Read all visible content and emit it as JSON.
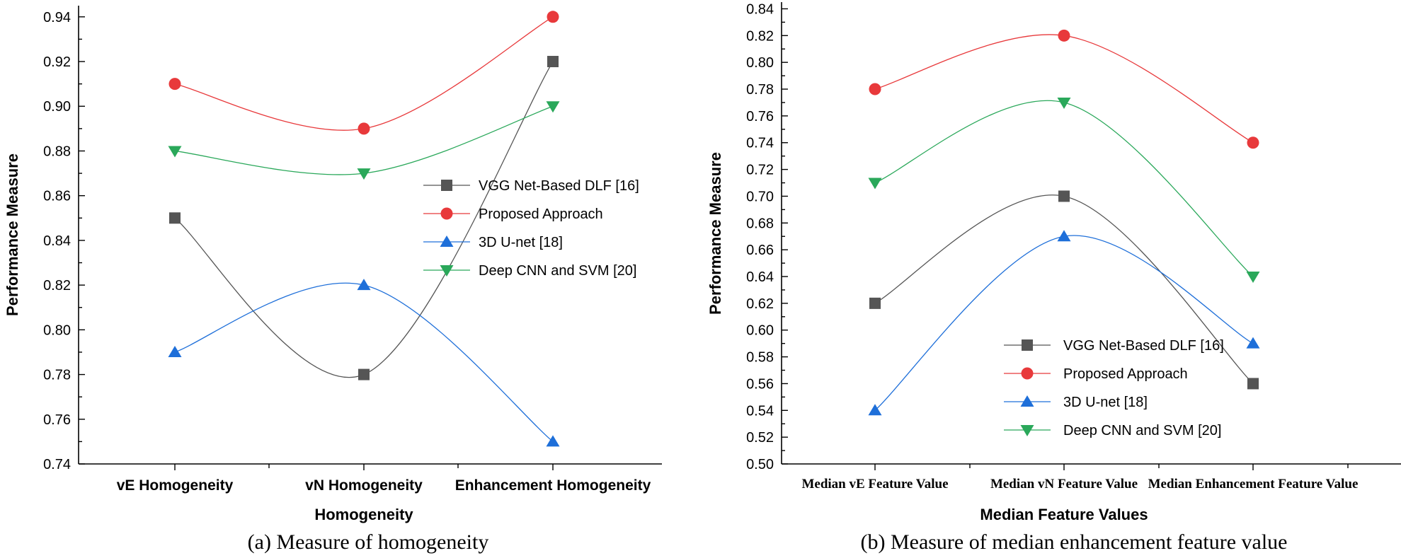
{
  "chart_data": [
    {
      "type": "line",
      "smooth": true,
      "categories": [
        "vE Homogeneity",
        "vN Homogeneity",
        "Enhancement Homogeneity"
      ],
      "series": [
        {
          "name": "VGG Net-Based DLF [16]",
          "color": "#555555",
          "marker": "square",
          "values": [
            0.85,
            0.78,
            0.92
          ]
        },
        {
          "name": "Proposed Approach",
          "color": "#e8393b",
          "marker": "circle",
          "values": [
            0.91,
            0.89,
            0.94
          ]
        },
        {
          "name": "3D U-net [18]",
          "color": "#1e6fd9",
          "marker": "triangle-up",
          "values": [
            0.79,
            0.82,
            0.75
          ]
        },
        {
          "name": "Deep CNN and SVM [20]",
          "color": "#2aa85a",
          "marker": "triangle-down",
          "values": [
            0.88,
            0.87,
            0.9
          ]
        }
      ],
      "xlabel": "Homogeneity",
      "ylabel": "Performance Measure",
      "ylim": [
        0.74,
        0.94
      ],
      "yticks": [
        "0.74",
        "0.76",
        "0.78",
        "0.80",
        "0.82",
        "0.84",
        "0.86",
        "0.88",
        "0.90",
        "0.92",
        "0.94"
      ],
      "legend_position": "center-right",
      "caption": "(a) Measure of homogeneity"
    },
    {
      "type": "line",
      "smooth": true,
      "categories": [
        "Median vE Feature Value",
        "Median vN Feature Value",
        "Median Enhancement Feature Value"
      ],
      "series": [
        {
          "name": "VGG Net-Based DLF [16]",
          "color": "#555555",
          "marker": "square",
          "values": [
            0.62,
            0.7,
            0.56
          ]
        },
        {
          "name": "Proposed Approach",
          "color": "#e8393b",
          "marker": "circle",
          "values": [
            0.78,
            0.82,
            0.74
          ]
        },
        {
          "name": "3D U-net [18]",
          "color": "#1e6fd9",
          "marker": "triangle-up",
          "values": [
            0.54,
            0.67,
            0.59
          ]
        },
        {
          "name": "Deep CNN and SVM [20]",
          "color": "#2aa85a",
          "marker": "triangle-down",
          "values": [
            0.71,
            0.77,
            0.64
          ]
        }
      ],
      "xlabel": "Median Feature Values",
      "ylabel": "Performance Measure",
      "ylim": [
        0.5,
        0.84
      ],
      "yticks": [
        "0.50",
        "0.52",
        "0.54",
        "0.56",
        "0.58",
        "0.60",
        "0.62",
        "0.64",
        "0.66",
        "0.68",
        "0.70",
        "0.72",
        "0.74",
        "0.76",
        "0.78",
        "0.80",
        "0.82",
        "0.84"
      ],
      "legend_position": "bottom-right",
      "caption": "(b) Measure of median enhancement feature value"
    }
  ]
}
